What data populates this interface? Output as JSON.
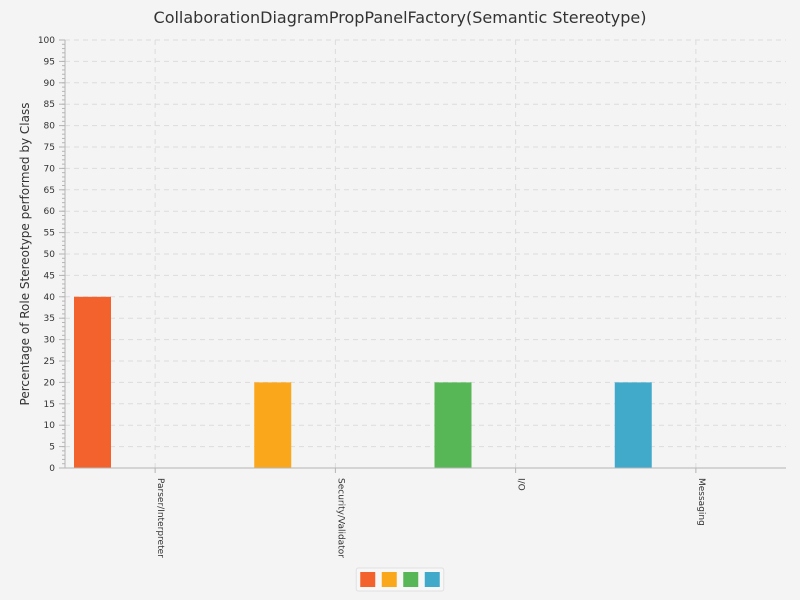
{
  "chart_data": {
    "type": "bar",
    "title": "CollaborationDiagramPropPanelFactory(Semantic Stereotype)",
    "xlabel": "",
    "ylabel": "Percentage of Role Stereotype performed by Class",
    "categories": [
      "Parser/Interpreter",
      "Security/Validator",
      "I/O",
      "Messaging"
    ],
    "values": [
      40,
      20,
      20,
      20
    ],
    "colors": [
      "#f3622d",
      "#fba71b",
      "#57b757",
      "#41a9c9"
    ],
    "ylim": [
      0,
      100
    ],
    "ytick_step": 5,
    "grid": true,
    "legend": {
      "placement": "bottom-center",
      "entries": [
        "",
        "",
        "",
        ""
      ]
    }
  }
}
